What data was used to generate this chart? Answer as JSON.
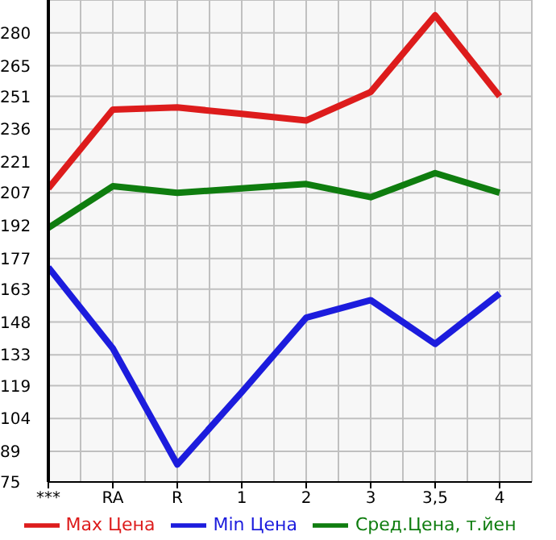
{
  "chart_data": {
    "type": "line",
    "categories": [
      "***",
      "RA",
      "R",
      "1",
      "2",
      "3",
      "3,5",
      "4"
    ],
    "series": [
      {
        "name": "Max Цена",
        "color": "#dd1c1c",
        "values": [
          209,
          245,
          246,
          243,
          240,
          253,
          288,
          251
        ]
      },
      {
        "name": "Min Цена",
        "color": "#1c1cdd",
        "values": [
          173,
          136,
          83,
          116,
          150,
          158,
          138,
          161
        ]
      },
      {
        "name": "Сред.Цена, т.йен",
        "color": "#0f7d0f",
        "values": [
          191,
          210,
          207,
          209,
          211,
          205,
          216,
          207
        ]
      }
    ],
    "ylim": [
      75,
      295
    ],
    "yticks": [
      75,
      89,
      104,
      119,
      133,
      148,
      163,
      177,
      192,
      207,
      221,
      236,
      251,
      265,
      280
    ],
    "grid": true,
    "legend": "bottom",
    "marker": "none",
    "line_style": "solid"
  }
}
